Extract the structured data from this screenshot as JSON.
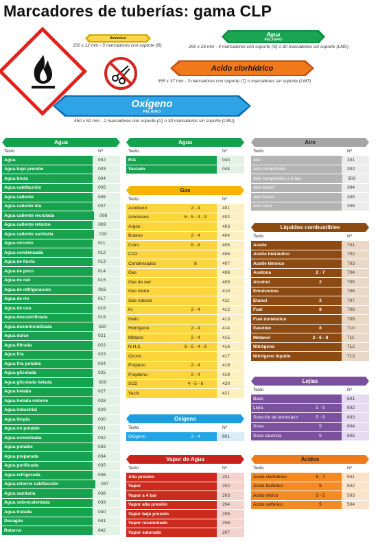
{
  "page_title": "Marcadores de tuberías: gama CLP",
  "markers": {
    "small": {
      "label": "Amoniaco",
      "caption": "150 x 12 mm - 5 marcadores con soporte (R)"
    },
    "water": {
      "label": "Agua",
      "sub": "PELIGRO",
      "caption": "250 x 26 mm - 4 marcadores con soporte (S) o 30 marcadores sin soporte (LMS)"
    },
    "acid": {
      "label": "Acido clorhídrico",
      "caption": "355 x 37 mm - 3 marcadores con soporte (T) o marcadores sin soporte (LMT)"
    },
    "oxygen": {
      "label": "Oxígeno",
      "sub": "PELIGRO",
      "caption": "450 x 52 mm - 2 marcadores con soporte (U) o 30 marcadores sin soporte (LMU)"
    }
  },
  "col_texto": "Texto",
  "col_no": "Nº",
  "tables": {
    "agua1": {
      "title": "Agua",
      "rows": [
        [
          "Agua",
          "",
          "002"
        ],
        [
          "Agua bajo presión",
          "",
          "003"
        ],
        [
          "Agua bruta",
          "",
          "004"
        ],
        [
          "Agua calefacción",
          "",
          "005"
        ],
        [
          "Agua caliente",
          "",
          "006"
        ],
        [
          "Agua caliente ida",
          "",
          "007"
        ],
        [
          "Agua caliente reciclada",
          "",
          "008"
        ],
        [
          "Agua caliente retorno",
          "",
          "009"
        ],
        [
          "Agua caliente sanitaria",
          "",
          "010"
        ],
        [
          "Agua circuito",
          "",
          "011"
        ],
        [
          "Agua condensada",
          "",
          "012"
        ],
        [
          "Agua de lluvia",
          "",
          "013"
        ],
        [
          "Agua de pozo",
          "",
          "014"
        ],
        [
          "Agua de red",
          "",
          "015"
        ],
        [
          "Agua de refrigeración",
          "",
          "016"
        ],
        [
          "Agua de río",
          "",
          "017"
        ],
        [
          "Agua de uso",
          "",
          "018"
        ],
        [
          "Agua descalcificada",
          "",
          "019"
        ],
        [
          "Agua desmineralizada",
          "",
          "020"
        ],
        [
          "Agua dulce",
          "",
          "021"
        ],
        [
          "Agua filtrada",
          "",
          "022"
        ],
        [
          "Agua fría",
          "",
          "023"
        ],
        [
          "Agua fría potable",
          "",
          "024"
        ],
        [
          "Agua glicolada",
          "",
          "025"
        ],
        [
          "Agua glicolada helada",
          "",
          "026"
        ],
        [
          "Agua helada",
          "",
          "027"
        ],
        [
          "Agua helada retorno",
          "",
          "028"
        ],
        [
          "Agua industrial",
          "",
          "029"
        ],
        [
          "Agua limpia",
          "",
          "030"
        ],
        [
          "Agua no potable",
          "",
          "031"
        ],
        [
          "Agua osmotizada",
          "",
          "032"
        ],
        [
          "Agua potable",
          "",
          "033"
        ],
        [
          "Agua preparada",
          "",
          "034"
        ],
        [
          "Agua purificada",
          "",
          "035"
        ],
        [
          "Agua refrigerada",
          "",
          "036"
        ],
        [
          "Agua retorno calefacción",
          "",
          "037"
        ],
        [
          "Agua sanitaria",
          "",
          "038"
        ],
        [
          "Agua sobrecalentada",
          "",
          "039"
        ],
        [
          "Agua tratada",
          "",
          "040"
        ],
        [
          "Desagüe",
          "",
          "041"
        ],
        [
          "Retorno",
          "",
          "042"
        ]
      ]
    },
    "agua2": {
      "title": "Agua",
      "rows": [
        [
          "RIA",
          "",
          "043"
        ],
        [
          "Vaciado",
          "",
          "044"
        ]
      ]
    },
    "gas": {
      "title": "Gas",
      "rows": [
        [
          "Acetileno",
          "2 - 4",
          "401"
        ],
        [
          "Amoníaco",
          "6 - 5 - 4 - 9",
          "402"
        ],
        [
          "Argón",
          "",
          "403"
        ],
        [
          "Butano",
          "2 - 4",
          "404"
        ],
        [
          "Cloro",
          "6 - 9",
          "405"
        ],
        [
          "CO2",
          "",
          "406"
        ],
        [
          "Condensados",
          "8",
          "407"
        ],
        [
          "Gas",
          "",
          "408"
        ],
        [
          "Gas de red",
          "",
          "409"
        ],
        [
          "Gas inerte",
          "",
          "410"
        ],
        [
          "Gas natural",
          "",
          "411"
        ],
        [
          "H₂",
          "2 - 4",
          "412"
        ],
        [
          "Helio",
          "",
          "413"
        ],
        [
          "Hidrógeno",
          "2 - 4",
          "414"
        ],
        [
          "Metano",
          "2 - 4",
          "415"
        ],
        [
          "N.H.3.",
          "6 - 5 - 4 - 9",
          "416"
        ],
        [
          "Ozono",
          "",
          "417"
        ],
        [
          "Propano",
          "2 - 4",
          "418"
        ],
        [
          "Propileno",
          "2 - 4",
          "419"
        ],
        [
          "SO2",
          "4 - 5 - 6",
          "420"
        ],
        [
          "Vacío",
          "",
          "421"
        ]
      ]
    },
    "oxigeno": {
      "title": "Oxígeno",
      "rows": [
        [
          "Oxígeno",
          "3 - 4",
          "801"
        ]
      ]
    },
    "vapor": {
      "title": "Vapor de Agua",
      "rows": [
        [
          "Alta presión",
          "",
          "201"
        ],
        [
          "Vapor",
          "",
          "202"
        ],
        [
          "Vapor a 4 bar",
          "",
          "203"
        ],
        [
          "Vapor alta presión",
          "",
          "204"
        ],
        [
          "Vapor baja presión",
          "",
          "205"
        ],
        [
          "Vapor recalentado",
          "",
          "206"
        ],
        [
          "Vapor saturado",
          "",
          "207"
        ]
      ]
    },
    "aire": {
      "title": "Aire",
      "rows": [
        [
          "Aire",
          "",
          "301"
        ],
        [
          "Aire comprimido",
          "",
          "302"
        ],
        [
          "Aire comprimido a 6 bar",
          "",
          "303"
        ],
        [
          "Aire estéril",
          "",
          "304"
        ],
        [
          "Aire fresco",
          "",
          "305"
        ],
        [
          "Aire seco",
          "",
          "306"
        ]
      ]
    },
    "liquidos": {
      "title": "Líquidos combustibles",
      "rows": [
        [
          "Aceite",
          "",
          "701"
        ],
        [
          "Aceite hidráulico",
          "",
          "702"
        ],
        [
          "Aceite térmico",
          "",
          "703"
        ],
        [
          "Acetona",
          "2 - 7",
          "704"
        ],
        [
          "Alcohol",
          "2",
          "705"
        ],
        [
          "Emulsiones",
          "",
          "706"
        ],
        [
          "Etanol",
          "2",
          "707"
        ],
        [
          "Fuel",
          "8",
          "708"
        ],
        [
          "Fuel doméstico",
          "",
          "709"
        ],
        [
          "Gasóleo",
          "8",
          "710"
        ],
        [
          "Metanol",
          "2 - 6 - 8",
          "711"
        ],
        [
          "Nitrógeno",
          "",
          "712"
        ],
        [
          "Nitrógeno líquido",
          "",
          "713"
        ]
      ]
    },
    "lejias": {
      "title": "Lejías",
      "rows": [
        [
          "Base",
          "",
          "601"
        ],
        [
          "Lejía",
          "5 - 9",
          "602"
        ],
        [
          "Solución de amoníaco",
          "5 - 9",
          "603"
        ],
        [
          "Sosa",
          "5",
          "604"
        ],
        [
          "Sosa cáustica",
          "5",
          "605"
        ]
      ]
    },
    "acidos": {
      "title": "Ácidos",
      "rows": [
        [
          "Ácido clorhídrico",
          "5 - 7",
          "501"
        ],
        [
          "Ácido fosfórico",
          "5",
          "502"
        ],
        [
          "Ácido nítrico",
          "3 - 5",
          "503"
        ],
        [
          "Ácido sulfúrico",
          "5",
          "504"
        ]
      ]
    }
  }
}
